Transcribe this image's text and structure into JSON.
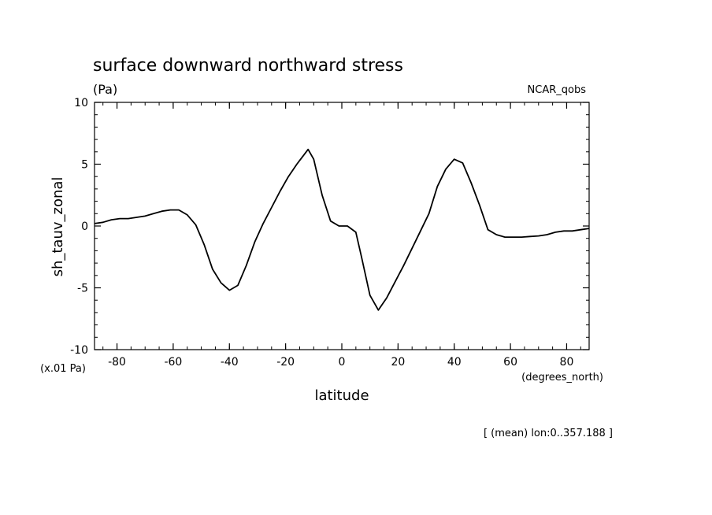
{
  "chart_data": {
    "type": "line",
    "title": "surface downward northward stress",
    "units_label": "(Pa)",
    "dataset_label": "NCAR_qobs",
    "ylabel": "sh_tauv_zonal",
    "xlabel": "latitude",
    "y_scale_note": "(x.01 Pa)",
    "x_units": "(degrees_north)",
    "footnote": "[ (mean) lon:0..357.188 ]",
    "xlim": [
      -88,
      88
    ],
    "ylim": [
      -10,
      10
    ],
    "x_ticks": [
      -80,
      -60,
      -40,
      -20,
      0,
      20,
      40,
      60,
      80
    ],
    "x_tick_labels": [
      "-80",
      "-60",
      "-40",
      "-20",
      "0",
      "20",
      "40",
      "60",
      "80"
    ],
    "y_ticks": [
      -10,
      -5,
      0,
      5,
      10
    ],
    "y_tick_labels": [
      "-10",
      "-5",
      "0",
      "5",
      "10"
    ],
    "grid": false,
    "line_color": "#000000",
    "series": [
      {
        "x": [
          -88,
          -85,
          -82,
          -79,
          -76,
          -73,
          -70,
          -67,
          -64,
          -61,
          -58,
          -55,
          -52,
          -49,
          -46,
          -43,
          -40,
          -37,
          -34,
          -31,
          -28,
          -25,
          -22,
          -19,
          -16,
          -12,
          -10,
          -7,
          -4,
          -1,
          2,
          5,
          7,
          10,
          13,
          16,
          19,
          22,
          25,
          28,
          31,
          34,
          37,
          40,
          43,
          46,
          49,
          52,
          55,
          58,
          61,
          64,
          67,
          70,
          73,
          76,
          79,
          82,
          85,
          88
        ],
        "y": [
          0.2,
          0.3,
          0.5,
          0.6,
          0.6,
          0.7,
          0.8,
          1.0,
          1.2,
          1.3,
          1.3,
          0.9,
          0.1,
          -1.5,
          -3.5,
          -4.6,
          -5.2,
          -4.8,
          -3.2,
          -1.3,
          0.2,
          1.5,
          2.8,
          4.0,
          5.0,
          6.2,
          5.4,
          2.5,
          0.4,
          0.0,
          0.0,
          -0.5,
          -2.5,
          -5.6,
          -6.8,
          -5.8,
          -4.5,
          -3.2,
          -1.8,
          -0.4,
          1.0,
          3.2,
          4.6,
          5.4,
          5.1,
          3.5,
          1.7,
          -0.3,
          -0.7,
          -0.9,
          -0.9,
          -0.9,
          -0.85,
          -0.8,
          -0.7,
          -0.5,
          -0.4,
          -0.4,
          -0.3,
          -0.2
        ]
      }
    ]
  }
}
